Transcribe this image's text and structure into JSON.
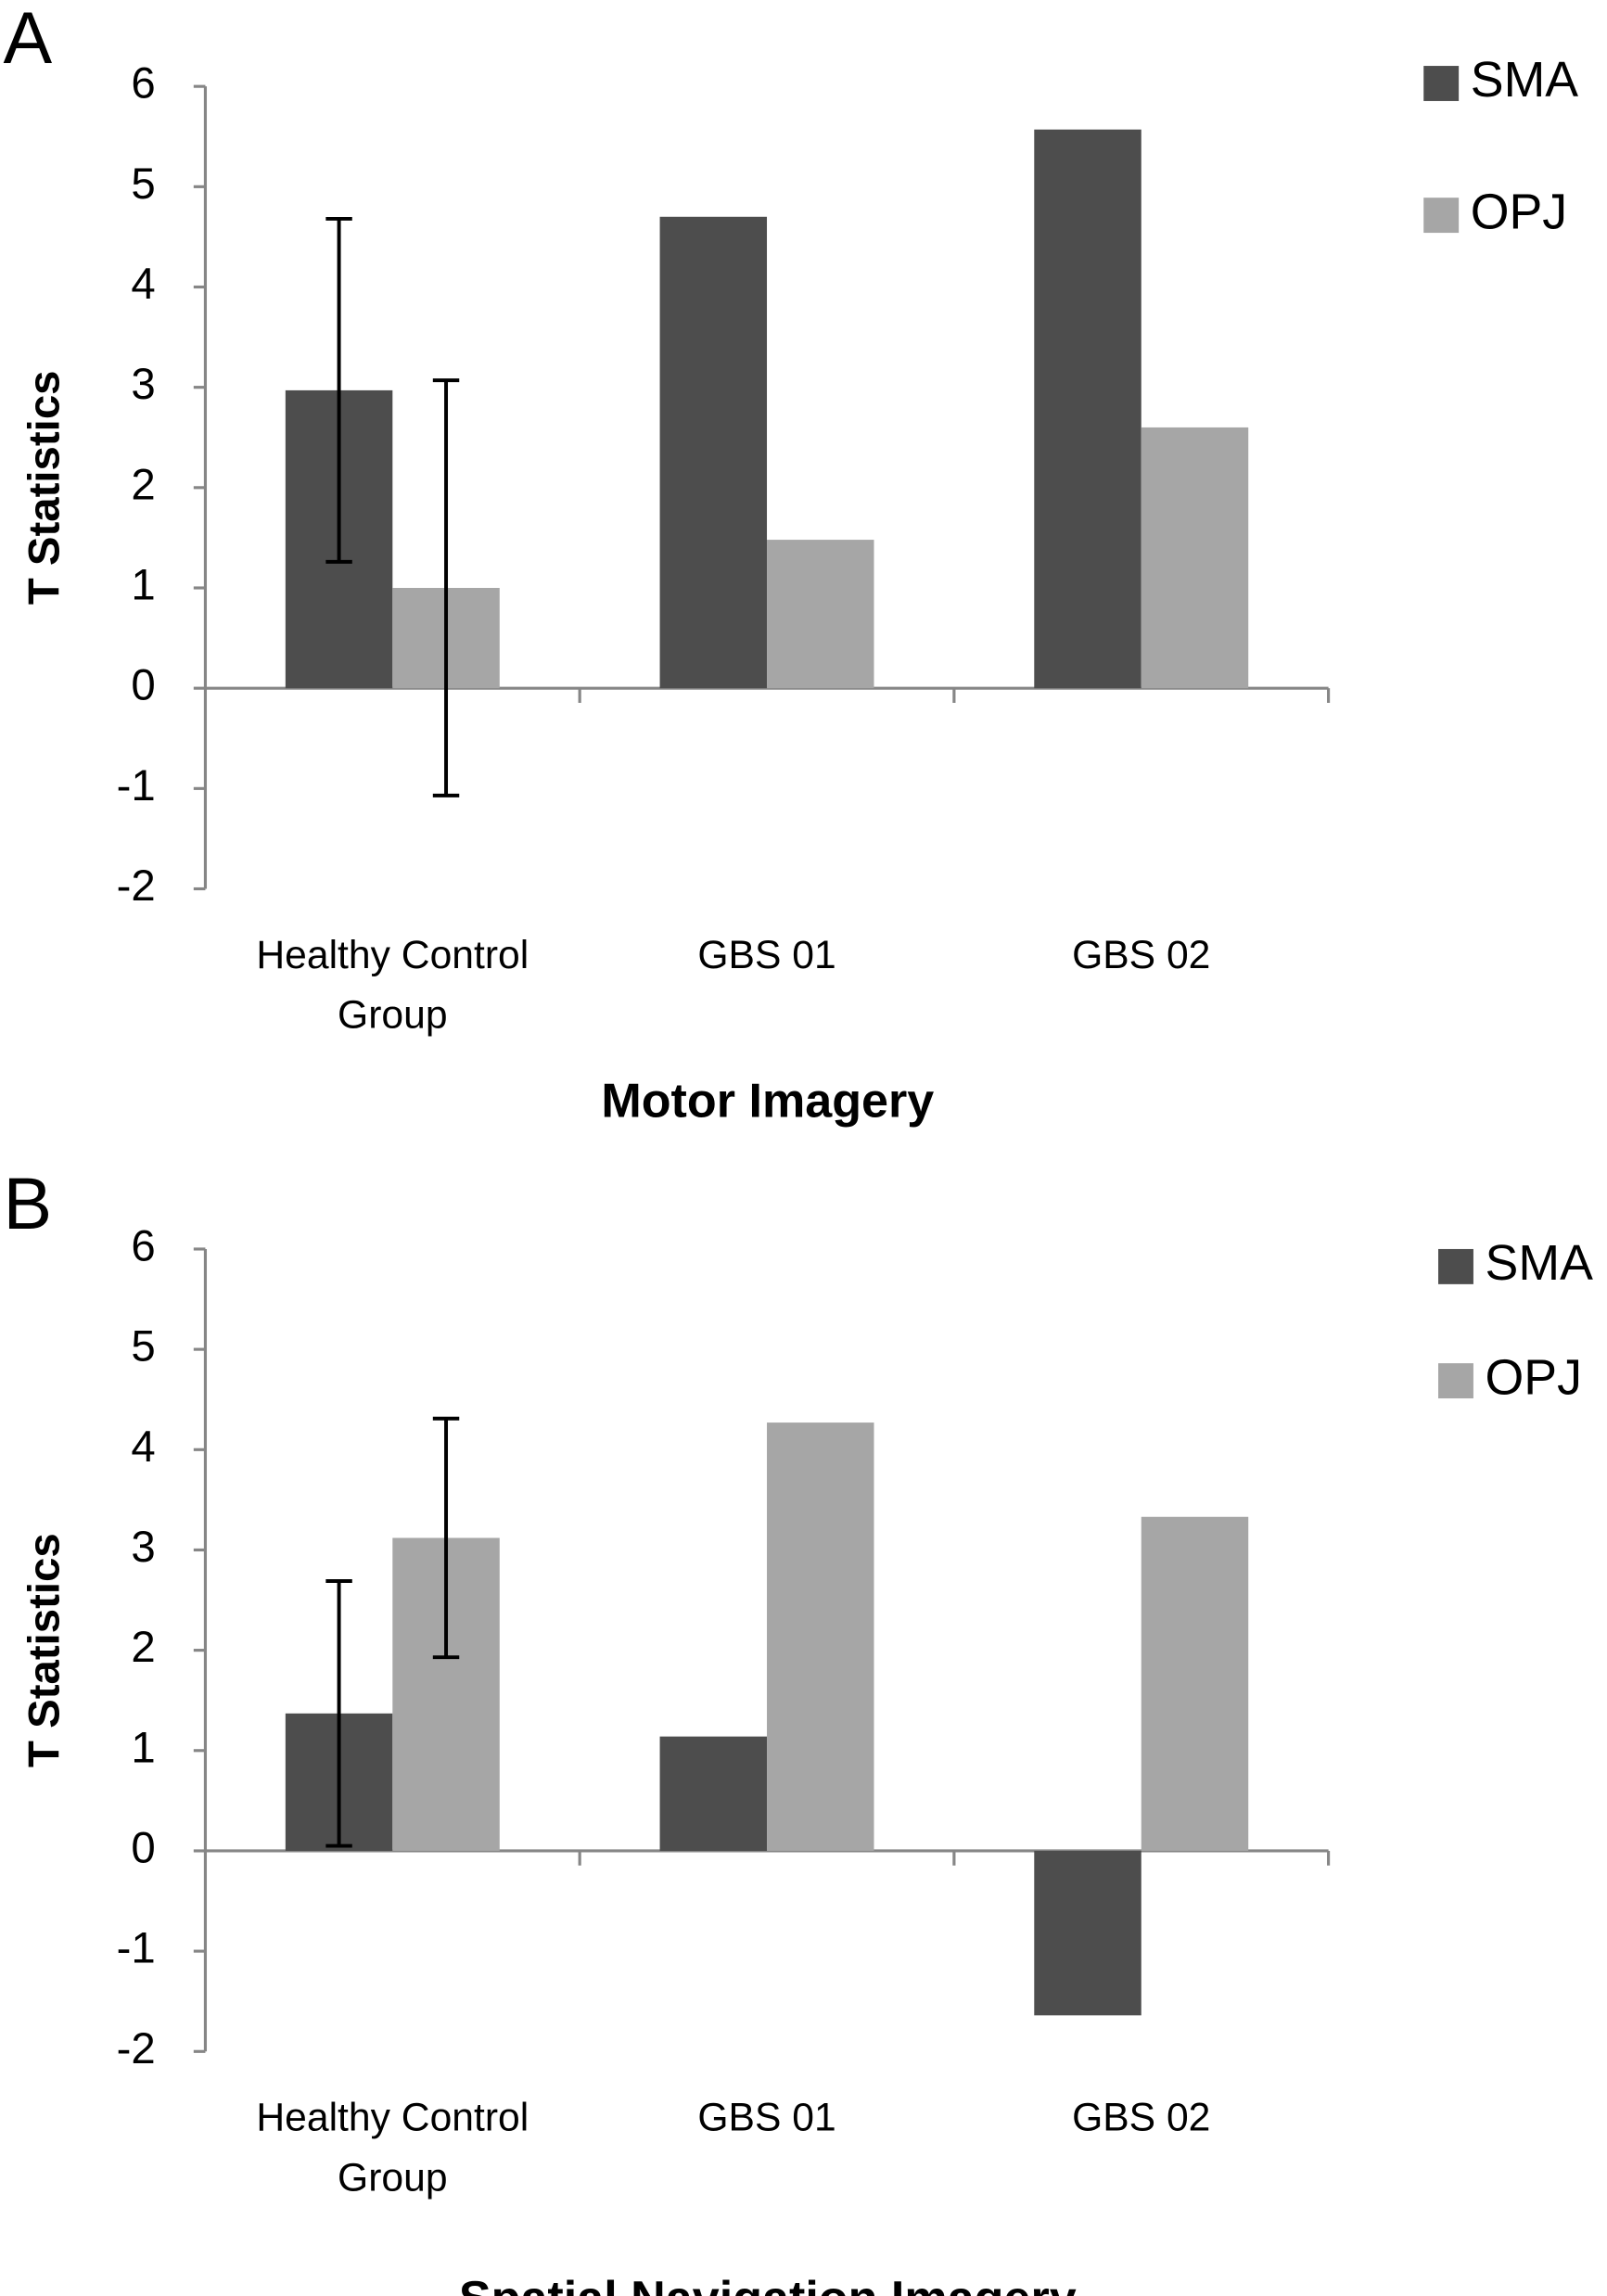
{
  "chart_data": [
    {
      "type": "bar",
      "panel_label": "A",
      "title": "Motor Imagery",
      "y_label": "T Statistics",
      "categories": [
        "Healthy Control Group",
        "GBS 01",
        "GBS 02"
      ],
      "series": [
        {
          "name": "SMA",
          "color": "#4d4d4d",
          "values": [
            2.97,
            4.7,
            5.57
          ],
          "errors": [
            1.71,
            null,
            null
          ]
        },
        {
          "name": "OPJ",
          "color": "#a6a6a6",
          "values": [
            1.0,
            1.48,
            2.6
          ],
          "errors": [
            2.07,
            null,
            null
          ]
        }
      ],
      "ylim": [
        -2,
        6
      ],
      "yticks": [
        -2,
        -1,
        0,
        1,
        2,
        3,
        4,
        5,
        6
      ],
      "grid": false
    },
    {
      "type": "bar",
      "panel_label": "B",
      "title": "Spatial Navigation Imagery",
      "y_label": "T Statistics",
      "categories": [
        "Healthy Control Group",
        "GBS 01",
        "GBS 02"
      ],
      "series": [
        {
          "name": "SMA",
          "color": "#4d4d4d",
          "values": [
            1.37,
            1.14,
            -1.64
          ],
          "errors": [
            1.32,
            null,
            null
          ]
        },
        {
          "name": "OPJ",
          "color": "#a6a6a6",
          "values": [
            3.12,
            4.27,
            3.33
          ],
          "errors": [
            1.19,
            null,
            null
          ]
        }
      ],
      "ylim": [
        -2,
        6
      ],
      "yticks": [
        -2,
        -1,
        0,
        1,
        2,
        3,
        4,
        5,
        6
      ],
      "grid": false
    }
  ]
}
